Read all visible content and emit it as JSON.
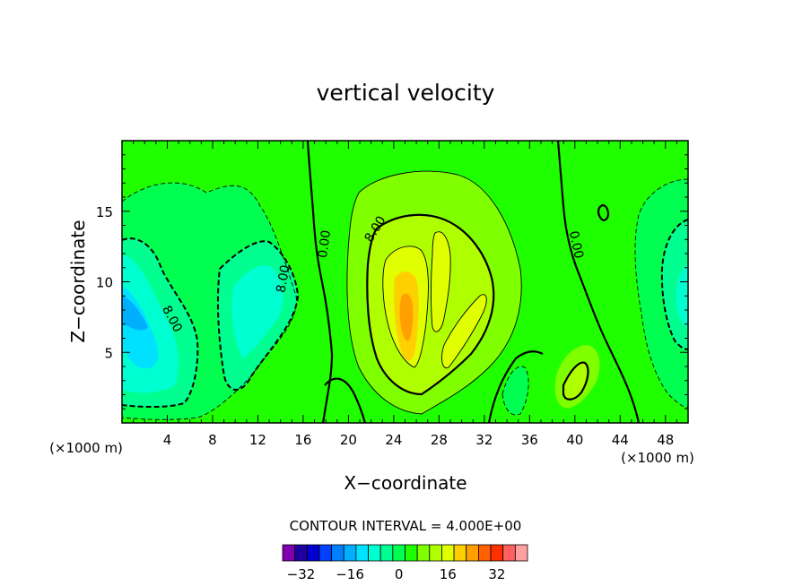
{
  "chart_data": {
    "type": "heatmap",
    "title": "vertical velocity",
    "xlabel": "X−coordinate",
    "ylabel": "Z−coordinate",
    "x_unit": "(×1000 m)",
    "y_unit": "(×1000 m)",
    "xlim": [
      0,
      50
    ],
    "ylim": [
      0,
      20
    ],
    "x_ticks": [
      4,
      8,
      12,
      16,
      20,
      24,
      28,
      32,
      36,
      40,
      44,
      48
    ],
    "x_tick_labels": [
      "4",
      "8",
      "12",
      "16",
      "20",
      "24",
      "28",
      "32",
      "36",
      "40",
      "44",
      "48"
    ],
    "y_ticks": [
      5,
      10,
      15
    ],
    "y_tick_labels": [
      "5",
      "10",
      "15"
    ],
    "grid": false,
    "contour_interval_text": "CONTOUR INTERVAL = 4.000E+00",
    "contour_labels": [
      "8.00",
      "0.00",
      "8.00",
      "0.00",
      "8.00",
      "8.00"
    ],
    "colorbar": {
      "levels": [
        -36,
        -32,
        -28,
        -24,
        -20,
        -16,
        -12,
        -8,
        -4,
        0,
        4,
        8,
        12,
        16,
        20,
        24,
        28,
        32,
        36,
        40
      ],
      "tick_values": [
        -32,
        -16,
        0,
        16,
        32
      ],
      "tick_labels": [
        "−32",
        "−16",
        "0",
        "16",
        "32"
      ],
      "colors": [
        "#8000b0",
        "#2000a0",
        "#0000d0",
        "#0040ff",
        "#0080ff",
        "#00b0ff",
        "#00e0ff",
        "#00ffd0",
        "#00ff90",
        "#00ff50",
        "#20ff00",
        "#80ff00",
        "#b0ff00",
        "#e0ff00",
        "#ffd000",
        "#ffa000",
        "#ff6000",
        "#ff3000",
        "#ff6060",
        "#ffa0a0"
      ]
    },
    "features": [
      {
        "kind": "updraft",
        "x": 25,
        "z": 8.5,
        "max": 24
      },
      {
        "kind": "updraft",
        "x": 28,
        "z": 8,
        "max": 16
      },
      {
        "kind": "updraft",
        "x": 40,
        "z": 3,
        "max": 12
      },
      {
        "kind": "downdraft",
        "x": 0.5,
        "z": 7,
        "min": -20
      },
      {
        "kind": "downdraft",
        "x": 13,
        "z": 10,
        "min": -12
      },
      {
        "kind": "downdraft",
        "x": 49.5,
        "z": 9,
        "min": -12
      }
    ]
  }
}
